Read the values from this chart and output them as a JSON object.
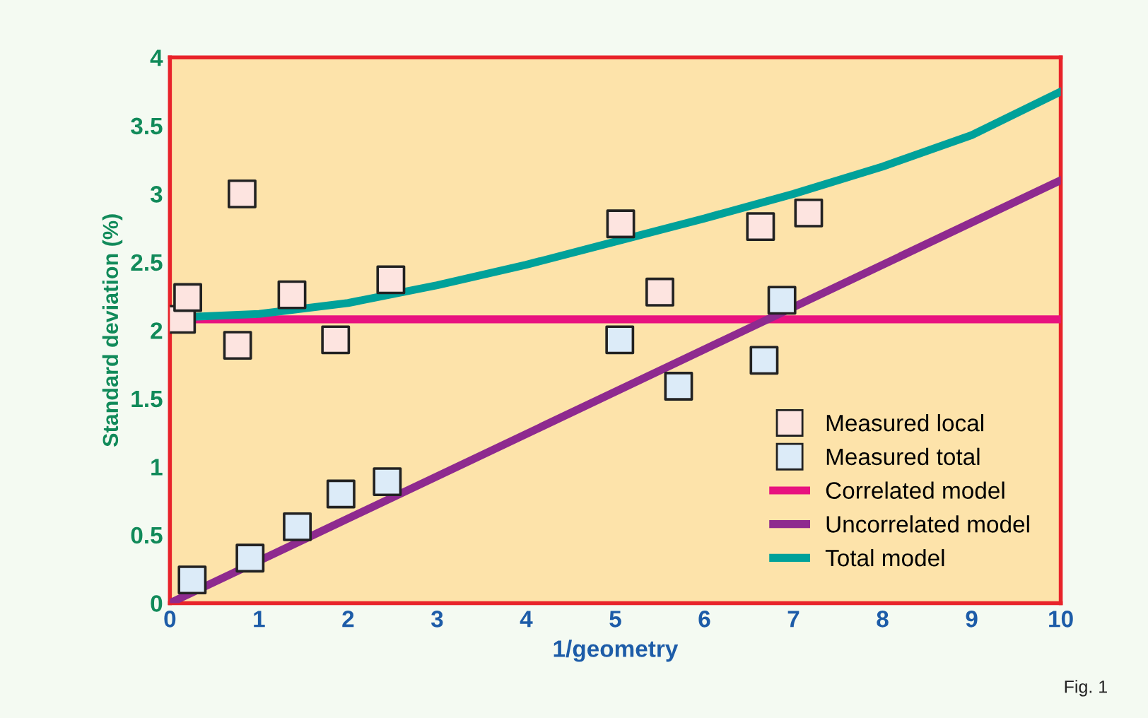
{
  "chart_data": {
    "type": "line",
    "xlabel": "1/geometry",
    "ylabel": "Standard deviation (%)",
    "annotations": [
      "Fig. 1"
    ],
    "xlim": [
      0,
      10
    ],
    "ylim": [
      0,
      4
    ],
    "xticks": [
      0,
      1,
      2,
      3,
      4,
      5,
      6,
      7,
      8,
      9,
      10
    ],
    "yticks": [
      0,
      0.5,
      1,
      1.5,
      2,
      2.5,
      3,
      3.5,
      4
    ],
    "grid": false,
    "legend": "bottom right",
    "series": [
      {
        "name": "Measured local",
        "type": "scatter",
        "marker": "square",
        "color": "#fde4e0",
        "x": [
          0.13,
          0.2,
          0.76,
          0.81,
          1.37,
          1.86,
          2.48,
          5.06,
          5.5,
          6.63,
          7.17
        ],
        "values": [
          2.08,
          2.24,
          1.89,
          3.0,
          2.26,
          1.93,
          2.37,
          2.78,
          2.28,
          2.76,
          2.86
        ]
      },
      {
        "name": "Measured total",
        "type": "scatter",
        "marker": "square",
        "color": "#dcebf8",
        "x": [
          0.25,
          0.9,
          1.43,
          1.92,
          2.44,
          5.05,
          5.71,
          6.67,
          6.87
        ],
        "values": [
          0.17,
          0.33,
          0.56,
          0.8,
          0.89,
          1.93,
          1.59,
          1.78,
          2.22
        ]
      },
      {
        "name": "Correlated model",
        "color": "#e8127f",
        "x": [
          0.3,
          10
        ],
        "values": [
          2.08,
          2.08
        ]
      },
      {
        "name": "Uncorrelated model",
        "color": "#8e2a8f",
        "x": [
          0,
          10
        ],
        "values": [
          0,
          3.1
        ]
      },
      {
        "name": "Total model",
        "color": "#00a19a",
        "x": [
          0.3,
          1,
          2,
          3,
          4,
          5,
          6,
          7,
          8,
          9,
          10
        ],
        "values": [
          2.1,
          2.12,
          2.2,
          2.33,
          2.48,
          2.65,
          2.82,
          3.0,
          3.2,
          3.43,
          3.75
        ]
      }
    ]
  }
}
